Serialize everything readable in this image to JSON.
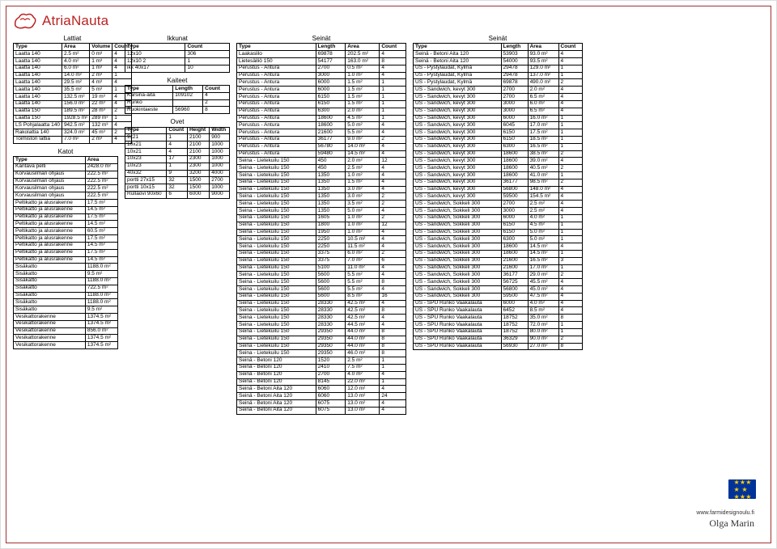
{
  "brand": "AtriaNauta",
  "tables": {
    "lattiat": {
      "title": "Lattiat",
      "cols": [
        "Type",
        "Area",
        "Volume",
        "Count"
      ],
      "rows": [
        [
          "Laatta 140",
          "2.5 m²",
          "0 m³",
          "4"
        ],
        [
          "Laatta 140",
          "4.0 m²",
          "1 m³",
          "4"
        ],
        [
          "Laatta 140",
          "6.0 m²",
          "1 m³",
          "4"
        ],
        [
          "Laatta 140",
          "14.0 m²",
          "2 m³",
          "1"
        ],
        [
          "Laatta 140",
          "29.5 m²",
          "4 m³",
          "4"
        ],
        [
          "Laatta 140",
          "35.5 m²",
          "5 m³",
          "1"
        ],
        [
          "Laatta 140",
          "132.5 m²",
          "19 m³",
          "4"
        ],
        [
          "Laatta 140",
          "156.0 m²",
          "22 m³",
          "4"
        ],
        [
          "Laatta 150",
          "189.5 m²",
          "28 m³",
          "2"
        ],
        [
          "Laatta 150",
          "1928.5 m²",
          "289 m³",
          "1"
        ],
        [
          "LS Pohjalaatta 140",
          "942.5 m²",
          "132 m³",
          "4"
        ],
        [
          "Rakolattia 140",
          "324.0 m²",
          "45 m³",
          "2"
        ],
        [
          "Toimiston lattia",
          "7.0 m²",
          "2 m³",
          "4"
        ]
      ]
    },
    "katot": {
      "title": "Katot",
      "cols": [
        "Type",
        "Area"
      ],
      "rows": [
        [
          "Kantava pelti",
          "2428.0 m²"
        ],
        [
          "Korvausilman ohjaus",
          "222.5 m²"
        ],
        [
          "Korvausilman ohjaus",
          "222.5 m²"
        ],
        [
          "Korvausilman ohjaus",
          "222.5 m²"
        ],
        [
          "Korvausilman ohjaus",
          "222.5 m²"
        ],
        [
          "Peltikatto ja alusrakenne",
          "17.5 m²"
        ],
        [
          "Peltikatto ja alusrakenne",
          "14.5 m²"
        ],
        [
          "Peltikatto ja alusrakenne",
          "17.5 m²"
        ],
        [
          "Peltikatto ja alusrakenne",
          "14.5 m²"
        ],
        [
          "Peltikatto ja alusrakenne",
          "60.5 m²"
        ],
        [
          "Peltikatto ja alusrakenne",
          "17.5 m²"
        ],
        [
          "Peltikatto ja alusrakenne",
          "14.5 m²"
        ],
        [
          "Peltikatto ja alusrakenne",
          "17.5 m²"
        ],
        [
          "Peltikatto ja alusrakenne",
          "14.5 m²"
        ],
        [
          "Sisäkatto",
          "1188.0 m²"
        ],
        [
          "Sisäkatto",
          "9.5 m²"
        ],
        [
          "Sisäkatto",
          "1188.0 m²"
        ],
        [
          "Sisäkatto",
          "722.5 m²"
        ],
        [
          "Sisäkatto",
          "1188.0 m²"
        ],
        [
          "Sisäkatto",
          "1188.0 m²"
        ],
        [
          "Sisäkatto",
          "9.5 m²"
        ],
        [
          "Vesikattorakenne",
          "1374.5 m²"
        ],
        [
          "Vesikattorakenne",
          "1374.5 m²"
        ],
        [
          "Vesikattorakenne",
          "856.0 m²"
        ],
        [
          "Vesikattorakenne",
          "1374.5 m²"
        ],
        [
          "Vesikattorakenne",
          "1374.5 m²"
        ]
      ]
    },
    "ikkunat": {
      "title": "Ikkunat",
      "cols": [
        "Type",
        "Count"
      ],
      "rows": [
        [
          "12x10",
          "306"
        ],
        [
          "12x10 2",
          "1"
        ],
        [
          "ikk 40x17",
          "10"
        ]
      ]
    },
    "kaiteet": {
      "title": "Kaiteet",
      "cols": [
        "Type",
        "Length",
        "Count"
      ],
      "rows": [
        [
          "Karsina-aita",
          "109102",
          "4"
        ],
        [
          "Runko",
          "",
          "2"
        ],
        [
          "Ruokintaeste",
          "56960",
          "8"
        ]
      ]
    },
    "ovet": {
      "title": "Ovet",
      "cols": [
        "Type",
        "Count",
        "Height",
        "Width"
      ],
      "rows": [
        [
          "9x21",
          "1",
          "2100",
          "900"
        ],
        [
          "10x21",
          "4",
          "2100",
          "1000"
        ],
        [
          "10x21",
          "4",
          "2100",
          "1000"
        ],
        [
          "10x23",
          "17",
          "2300",
          "1000"
        ],
        [
          "10x23",
          "1",
          "2300",
          "1000"
        ],
        [
          "40x32",
          "9",
          "3200",
          "4000"
        ],
        [
          "portti 27x15",
          "32",
          "1500",
          "2700"
        ],
        [
          "portti 10x15",
          "32",
          "1500",
          "1000"
        ],
        [
          "Rullaovi 90x60",
          "6",
          "6000",
          "9000"
        ]
      ]
    },
    "seinat1": {
      "title": "Seinät",
      "cols": [
        "Type",
        "Length",
        "Area",
        "Count"
      ],
      "rows": [
        [
          "Laakasiilo",
          "69878",
          "202.5 m²",
          "4"
        ],
        [
          "Lietesäiliö 150",
          "54177",
          "163.0 m²",
          "8"
        ],
        [
          "Perustus - Antura",
          "2700",
          "0.5 m²",
          "4"
        ],
        [
          "Perustus - Antura",
          "3000",
          "1.0 m²",
          "4"
        ],
        [
          "Perustus - Antura",
          "6000",
          "1.5 m²",
          "1"
        ],
        [
          "Perustus - Antura",
          "6000",
          "1.5 m²",
          "1"
        ],
        [
          "Perustus - Antura",
          "6150",
          "1.5 m²",
          "1"
        ],
        [
          "Perustus - Antura",
          "6150",
          "1.5 m²",
          "1"
        ],
        [
          "Perustus - Antura",
          "6300",
          "2.0 m²",
          "1"
        ],
        [
          "Perustus - Antura",
          "18600",
          "4.5 m²",
          "1"
        ],
        [
          "Perustus - Antura",
          "18600",
          "5.0 m²",
          "4"
        ],
        [
          "Perustus - Antura",
          "21600",
          "5.5 m²",
          "4"
        ],
        [
          "Perustus - Antura",
          "36177",
          "9.0 m²",
          "2"
        ],
        [
          "Perustus - Antura",
          "56780",
          "14.0 m²",
          "4"
        ],
        [
          "Perustus - Antura",
          "59480",
          "14.5 m²",
          "4"
        ],
        [
          "Seina - Lietekuilu 150",
          "450",
          "2.0 m²",
          "12"
        ],
        [
          "Seina - Lietekuilu 150",
          "450",
          "2.5 m²",
          "4"
        ],
        [
          "Seina - Lietekuilu 150",
          "1350",
          "1.0 m²",
          "4"
        ],
        [
          "Seina - Lietekuilu 150",
          "1350",
          "1.5 m²",
          "4"
        ],
        [
          "Seina - Lietekuilu 150",
          "1350",
          "3.0 m²",
          "4"
        ],
        [
          "Seina - Lietekuilu 150",
          "1350",
          "3.0 m²",
          "2"
        ],
        [
          "Seina - Lietekuilu 150",
          "1350",
          "3.5 m²",
          "2"
        ],
        [
          "Seina - Lietekuilu 150",
          "1350",
          "5.0 m²",
          "4"
        ],
        [
          "Seina - Lietekuilu 150",
          "1605",
          "1.0 m²",
          "2"
        ],
        [
          "Seina - Lietekuilu 150",
          "1800",
          "1.0 m²",
          "12"
        ],
        [
          "Seina - Lietekuilu 150",
          "1950",
          "1.0 m²",
          "4"
        ],
        [
          "Seina - Lietekuilu 150",
          "2250",
          "10.5 m²",
          "4"
        ],
        [
          "Seina - Lietekuilu 150",
          "2250",
          "11.5 m²",
          "4"
        ],
        [
          "Seina - Lietekuilu 150",
          "3375",
          "6.0 m²",
          "2"
        ],
        [
          "Seina - Lietekuilu 150",
          "3375",
          "7.0 m²",
          "6"
        ],
        [
          "Seina - Lietekuilu 150",
          "5100",
          "11.0 m²",
          "4"
        ],
        [
          "Seina - Lietekuilu 150",
          "5600",
          "5.5 m²",
          "4"
        ],
        [
          "Seina - Lietekuilu 150",
          "5600",
          "5.5 m²",
          "8"
        ],
        [
          "Seina - Lietekuilu 150",
          "5600",
          "5.5 m²",
          "4"
        ],
        [
          "Seina - Lietekuilu 150",
          "5600",
          "8.5 m²",
          "16"
        ],
        [
          "Seina - Lietekuilu 150",
          "28330",
          "42.5 m²",
          "4"
        ],
        [
          "Seina - Lietekuilu 150",
          "28330",
          "42.5 m²",
          "8"
        ],
        [
          "Seina - Lietekuilu 150",
          "28330",
          "42.5 m²",
          "4"
        ],
        [
          "Seina - Lietekuilu 150",
          "28330",
          "44.5 m²",
          "4"
        ],
        [
          "Seina - Lietekuilu 150",
          "29350",
          "44.0 m²",
          "8"
        ],
        [
          "Seina - Lietekuilu 150",
          "29350",
          "44.0 m²",
          "8"
        ],
        [
          "Seina - Lietekuilu 150",
          "29350",
          "44.0 m²",
          "8"
        ],
        [
          "Seina - Lietekuilu 150",
          "29350",
          "46.0 m²",
          "8"
        ],
        [
          "Seinä - Betoni 120",
          "1520",
          "2.5 m²",
          "1"
        ],
        [
          "Seinä - Betoni 120",
          "2410",
          "7.5 m²",
          "1"
        ],
        [
          "Seinä - Betoni 120",
          "2700",
          "4.0 m²",
          "4"
        ],
        [
          "Seinä - Betoni 120",
          "8145",
          "22.0 m²",
          "1"
        ],
        [
          "Seinä - Betoni Aita 120",
          "6060",
          "12.0 m²",
          "4"
        ],
        [
          "Seinä - Betoni Aita 120",
          "6060",
          "13.0 m²",
          "24"
        ],
        [
          "Seinä - Betoni Aita 120",
          "6075",
          "13.0 m²",
          "4"
        ],
        [
          "Seinä - Betoni Aita 120",
          "6075",
          "13.0 m²",
          "4"
        ]
      ]
    },
    "seinat2": {
      "title": "Seinät",
      "cols": [
        "Type",
        "Length",
        "Area",
        "Count"
      ],
      "rows": [
        [
          "Seinä - Betoni Aita 120",
          "53903",
          "93.0 m²",
          "4"
        ],
        [
          "Seinä - Betoni Aita 120",
          "54000",
          "93.5 m²",
          "4"
        ],
        [
          "US - Pystylaudat, Kylmä",
          "29478",
          "129.0 m²",
          "1"
        ],
        [
          "US - Pystylaudat, Kylmä",
          "29478",
          "137.0 m²",
          "1"
        ],
        [
          "US - Pystylaudat, Kylmä",
          "69878",
          "490.0 m²",
          "2"
        ],
        [
          "US - Sandwich, kevyt 300",
          "2700",
          "2.0 m²",
          "4"
        ],
        [
          "US - Sandwich, kevyt 300",
          "2700",
          "6.5 m²",
          "4"
        ],
        [
          "US - Sandwich, kevyt 300",
          "3000",
          "6.0 m²",
          "4"
        ],
        [
          "US - Sandwich, kevyt 300",
          "3000",
          "6.5 m²",
          "4"
        ],
        [
          "US - Sandwich, kevyt 300",
          "6000",
          "16.0 m²",
          "1"
        ],
        [
          "US - Sandwich, kevyt 300",
          "6045",
          "17.0 m²",
          "1"
        ],
        [
          "US - Sandwich, kevyt 300",
          "6150",
          "17.5 m²",
          "1"
        ],
        [
          "US - Sandwich, kevyt 300",
          "6150",
          "18.5 m²",
          "1"
        ],
        [
          "US - Sandwich, kevyt 300",
          "6300",
          "16.5 m²",
          "1"
        ],
        [
          "US - Sandwich, kevyt 300",
          "18600",
          "38.5 m²",
          "2"
        ],
        [
          "US - Sandwich, kevyt 300",
          "18600",
          "39.0 m²",
          "4"
        ],
        [
          "US - Sandwich, kevyt 300",
          "18600",
          "40.5 m²",
          "2"
        ],
        [
          "US - Sandwich, kevyt 300",
          "18600",
          "41.0 m²",
          "1"
        ],
        [
          "US - Sandwich, kevyt 300",
          "36177",
          "98.5 m²",
          "2"
        ],
        [
          "US - Sandwich, kevyt 300",
          "56800",
          "148.0 m²",
          "4"
        ],
        [
          "US - Sandwich, kevyt 300",
          "59500",
          "154.5 m²",
          "4"
        ],
        [
          "US - Sandwich, Sokkeli 300",
          "2700",
          "2.5 m²",
          "4"
        ],
        [
          "US - Sandwich, Sokkeli 300",
          "3000",
          "2.5 m²",
          "4"
        ],
        [
          "US - Sandwich, Sokkeli 300",
          "6000",
          "4.0 m²",
          "1"
        ],
        [
          "US - Sandwich, Sokkeli 300",
          "6150",
          "4.5 m²",
          "1"
        ],
        [
          "US - Sandwich, Sokkeli 300",
          "6150",
          "5.0 m²",
          "1"
        ],
        [
          "US - Sandwich, Sokkeli 300",
          "6300",
          "5.0 m²",
          "1"
        ],
        [
          "US - Sandwich, Sokkeli 300",
          "18600",
          "14.5 m²",
          "4"
        ],
        [
          "US - Sandwich, Sokkeli 300",
          "18600",
          "14.5 m²",
          "1"
        ],
        [
          "US - Sandwich, Sokkeli 300",
          "21600",
          "16.5 m²",
          "3"
        ],
        [
          "US - Sandwich, Sokkeli 300",
          "21600",
          "17.0 m²",
          "1"
        ],
        [
          "US - Sandwich, Sokkeli 300",
          "36177",
          "29.0 m²",
          "2"
        ],
        [
          "US - Sandwich, Sokkeli 300",
          "56725",
          "45.5 m²",
          "4"
        ],
        [
          "US - Sandwich, Sokkeli 300",
          "56800",
          "45.0 m²",
          "4"
        ],
        [
          "US - Sandwich, Sokkeli 300",
          "59500",
          "47.5 m²",
          "4"
        ],
        [
          "US - SPU Runko Vaakalauta",
          "6000",
          "4.0 m²",
          "4"
        ],
        [
          "US - SPU Runko Vaakalauta",
          "6452",
          "8.5 m²",
          "4"
        ],
        [
          "US - SPU Runko Vaakalauta",
          "18752",
          "35.0 m²",
          "8"
        ],
        [
          "US - SPU Runko Vaakalauta",
          "18752",
          "72.0 m²",
          "1"
        ],
        [
          "US - SPU Runko Vaakalauta",
          "18752",
          "80.0 m²",
          "1"
        ],
        [
          "US - SPU Runko Vaakalauta",
          "36329",
          "90.0 m²",
          "2"
        ],
        [
          "US - SPU Runko Vaakalauta",
          "56930",
          "27.0 m²",
          "8"
        ]
      ]
    }
  },
  "footer": {
    "url": "www.farmidesignoulu.fi",
    "signature": "Olga Marin"
  }
}
